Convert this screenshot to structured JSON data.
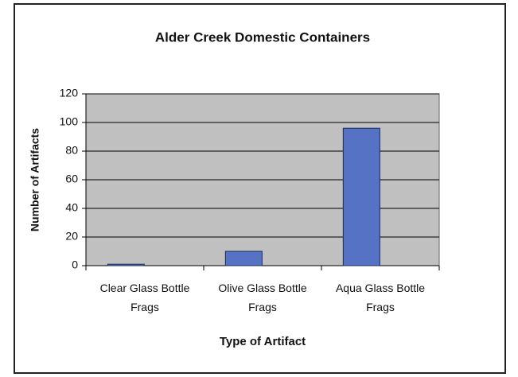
{
  "chart_data": {
    "type": "bar",
    "title": "Alder Creek Domestic Containers",
    "x_label": "Type of Artifact",
    "y_label": "Number of Artifacts",
    "categories": [
      "Clear Glass Bottle Frags",
      "Olive Glass Bottle Frags",
      "Aqua Glass Bottle Frags"
    ],
    "values": [
      1,
      10,
      96
    ],
    "color": "#5572c4",
    "ylim": [
      0,
      120
    ],
    "yticks": [
      0,
      20,
      40,
      60,
      80,
      100,
      120
    ],
    "grid": true
  }
}
